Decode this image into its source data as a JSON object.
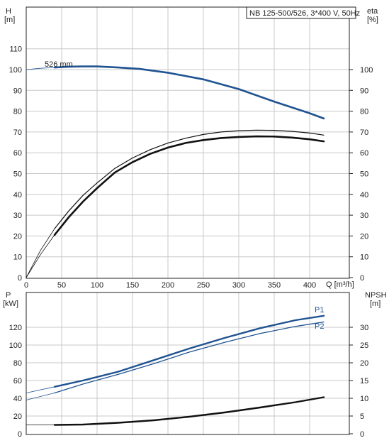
{
  "colors": {
    "blue": "#1f5391",
    "black": "#111111",
    "grid": "#c8c8c8"
  },
  "chart_data": [
    {
      "type": "line",
      "title": "NB 125-500/526, 3*400 V, 50Hz",
      "xlabel": "Q [m³/h]",
      "ylabel_left_unit": "H",
      "ylabel_left_sub": "[m]",
      "ylabel_right_unit": "eta",
      "ylabel_right_sub": "[%]",
      "xlim": [
        0,
        440
      ],
      "ylim_left": [
        0,
        120
      ],
      "ylim_right": [
        0,
        120
      ],
      "x_ticks": [
        "0",
        "50",
        "100",
        "150",
        "200",
        "250",
        "300",
        "350",
        "400"
      ],
      "left_ticks": [
        "0",
        "10",
        "20",
        "30",
        "40",
        "50",
        "60",
        "70",
        "80",
        "90",
        "100",
        "110"
      ],
      "right_ticks": [
        "0",
        "10",
        "20",
        "30",
        "40",
        "50",
        "60",
        "70",
        "80",
        "90",
        "100"
      ],
      "annotation": "526 mm",
      "series": [
        {
          "key": "H",
          "axis": "left",
          "color": "#1f5391",
          "x": [
            0,
            20,
            40,
            60,
            80,
            100,
            130,
            160,
            200,
            250,
            300,
            350,
            400,
            420
          ],
          "y": [
            100,
            100.6,
            101,
            101.4,
            101.5,
            101.5,
            101,
            100.3,
            98.5,
            95.3,
            90.6,
            84.6,
            79,
            76.5
          ]
        },
        {
          "key": "eta-ref",
          "axis": "right",
          "color": "#111111",
          "x": [
            0,
            20,
            40,
            60,
            80,
            100,
            125,
            150,
            175,
            200,
            225,
            250,
            275,
            300,
            325,
            350,
            375,
            400,
            420
          ],
          "y": [
            0,
            13,
            23.5,
            32,
            39.5,
            45.5,
            52.5,
            57.5,
            61.5,
            64.7,
            67,
            68.8,
            70,
            70.6,
            70.9,
            70.8,
            70.3,
            69.5,
            68.5
          ]
        },
        {
          "key": "eta",
          "axis": "right",
          "color": "#111111",
          "x": [
            0,
            20,
            40,
            60,
            80,
            100,
            125,
            150,
            175,
            200,
            225,
            250,
            275,
            300,
            325,
            350,
            375,
            400,
            420
          ],
          "y": [
            0,
            11,
            20.5,
            29,
            36.5,
            43,
            50.5,
            55.5,
            59.5,
            62.5,
            64.7,
            66.1,
            67.1,
            67.6,
            67.9,
            67.8,
            67.3,
            66.5,
            65.5
          ]
        }
      ]
    },
    {
      "type": "line",
      "xlim": [
        0,
        440
      ],
      "ylabel_left_unit": "P",
      "ylabel_left_sub": "[kW]",
      "ylabel_right_unit": "NPSH",
      "ylabel_right_sub": "[m]",
      "ylim_left": [
        0,
        140
      ],
      "ylim_right": [
        0,
        35
      ],
      "left_ticks": [
        "0",
        "20",
        "40",
        "60",
        "80",
        "100",
        "120"
      ],
      "right_ticks": [
        "0",
        "5",
        "10",
        "15",
        "20",
        "25",
        "30"
      ],
      "series": [
        {
          "name": "P1",
          "axis": "left",
          "color": "#1f5391",
          "x": [
            0,
            40,
            80,
            130,
            180,
            230,
            280,
            330,
            380,
            420
          ],
          "y": [
            46,
            53,
            60,
            70,
            83,
            96,
            108,
            119,
            128,
            133
          ]
        },
        {
          "name": "P2",
          "axis": "left",
          "color": "#1f5391",
          "x": [
            0,
            40,
            80,
            130,
            180,
            230,
            280,
            330,
            380,
            420
          ],
          "y": [
            38,
            46,
            56,
            67,
            79,
            92,
            103,
            113,
            121,
            126
          ]
        },
        {
          "key": "NPSH",
          "axis": "right",
          "color": "#111111",
          "x": [
            0,
            40,
            80,
            130,
            180,
            230,
            280,
            330,
            380,
            420
          ],
          "y": [
            2.5,
            2.5,
            2.6,
            3.1,
            3.8,
            4.8,
            6.0,
            7.4,
            8.9,
            10.3
          ]
        }
      ]
    }
  ]
}
